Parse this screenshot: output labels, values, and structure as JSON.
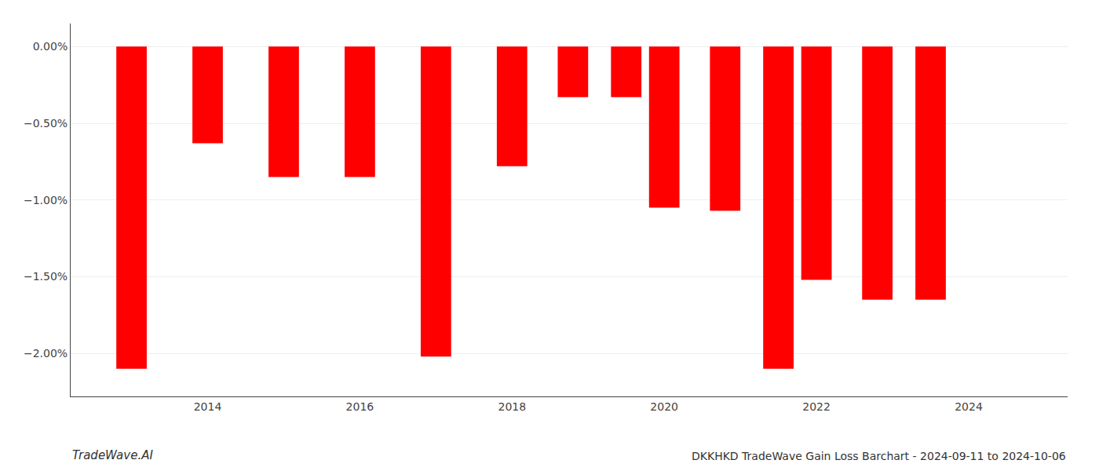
{
  "chart_data": {
    "type": "bar",
    "title": "DKKHKD TradeWave Gain Loss Barchart - 2024-09-11 to 2024-10-06",
    "annotations": [
      "TradeWave.AI"
    ],
    "x": [
      2013,
      2014,
      2015,
      2016,
      2017,
      2018,
      2018.8,
      2019.5,
      2020,
      2020.8,
      2021.5,
      2022,
      2022.8,
      2023.5
    ],
    "values": [
      -2.1,
      -0.63,
      -0.85,
      -0.85,
      -2.02,
      -0.78,
      -0.33,
      -0.33,
      -1.05,
      -1.07,
      -2.1,
      -1.52,
      -1.65,
      -1.65
    ],
    "color": "#FF0000",
    "xlim": [
      2012.2,
      2025.3
    ],
    "xticks": [
      2014,
      2016,
      2018,
      2020,
      2022,
      2024
    ],
    "ylim": [
      -2.28,
      0.15
    ],
    "yticks": [
      {
        "value": 0.0,
        "label": "0.00%"
      },
      {
        "value": -0.5,
        "label": "−0.50%"
      },
      {
        "value": -1.0,
        "label": "−1.00%"
      },
      {
        "value": -1.5,
        "label": "−1.50%"
      },
      {
        "value": -2.0,
        "label": "−2.00%"
      }
    ],
    "grid": true
  }
}
